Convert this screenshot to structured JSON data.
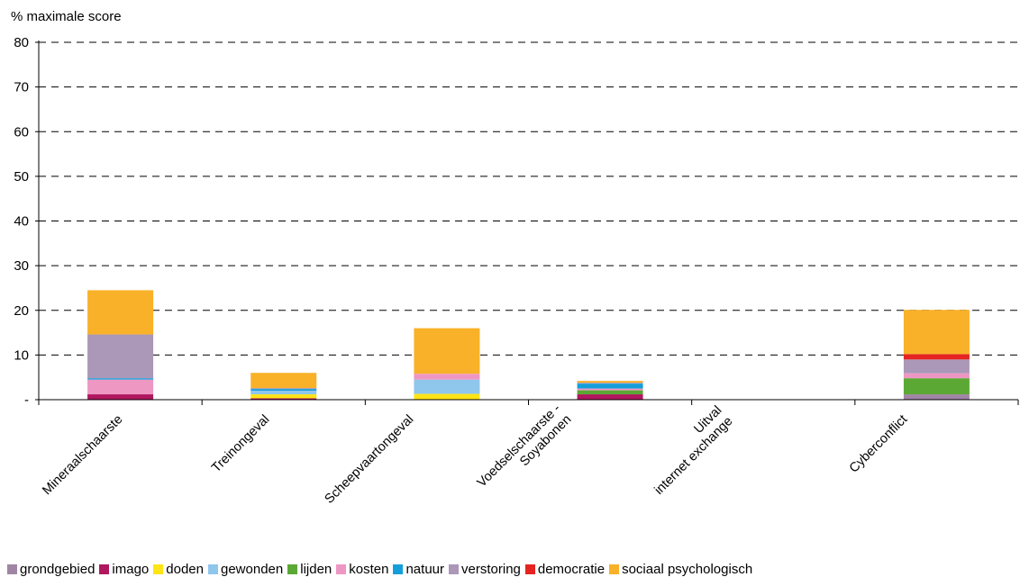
{
  "chart_data": {
    "type": "bar",
    "stacked": true,
    "ylabel": "% maximale score",
    "ylim": [
      0,
      80
    ],
    "yticks": [
      0,
      10,
      20,
      30,
      40,
      50,
      60,
      70,
      80
    ],
    "ytick_labels": [
      "-",
      "10",
      "20",
      "30",
      "40",
      "50",
      "60",
      "70",
      "80"
    ],
    "grid": "dashed horizontal",
    "legend_position": "bottom",
    "categories": [
      [
        "Mineraalschaarste"
      ],
      [
        "Treinongeval"
      ],
      [
        "Scheepvaartongeval"
      ],
      [
        "Voedselschaarste -",
        "Soyabonen"
      ],
      [
        "Uitval",
        "internet exchange"
      ],
      [
        "Cyberconflict"
      ]
    ],
    "series": [
      {
        "name": "grondgebied",
        "color": "#A185A5",
        "values": [
          0,
          0,
          0,
          0,
          0,
          1.2
        ]
      },
      {
        "name": "imago",
        "color": "#B0175F",
        "values": [
          1.2,
          0.3,
          0,
          1.2,
          0,
          0
        ]
      },
      {
        "name": "doden",
        "color": "#FFE417",
        "values": [
          0,
          0.9,
          1.3,
          0,
          0,
          0
        ]
      },
      {
        "name": "gewonden",
        "color": "#8FC6EC",
        "values": [
          0,
          0.8,
          3.2,
          0,
          0,
          0
        ]
      },
      {
        "name": "lijden",
        "color": "#5BA835",
        "values": [
          0,
          0,
          0,
          0.9,
          0,
          3.6
        ]
      },
      {
        "name": "kosten",
        "color": "#EE97C3",
        "values": [
          3.3,
          0,
          1.3,
          0.4,
          0,
          1.1
        ]
      },
      {
        "name": "natuur",
        "color": "#149FDB",
        "values": [
          0.3,
          0.4,
          0,
          1.1,
          0,
          0
        ]
      },
      {
        "name": "verstoring",
        "color": "#AB97B8",
        "values": [
          9.8,
          0.2,
          0,
          0.2,
          0,
          3.1
        ]
      },
      {
        "name": "democratie",
        "color": "#E52421",
        "values": [
          0,
          0,
          0,
          0,
          0,
          1.2
        ]
      },
      {
        "name": "sociaal psychologisch",
        "color": "#F8B129",
        "values": [
          9.9,
          3.4,
          10.2,
          0.4,
          0,
          9.9
        ]
      }
    ]
  }
}
